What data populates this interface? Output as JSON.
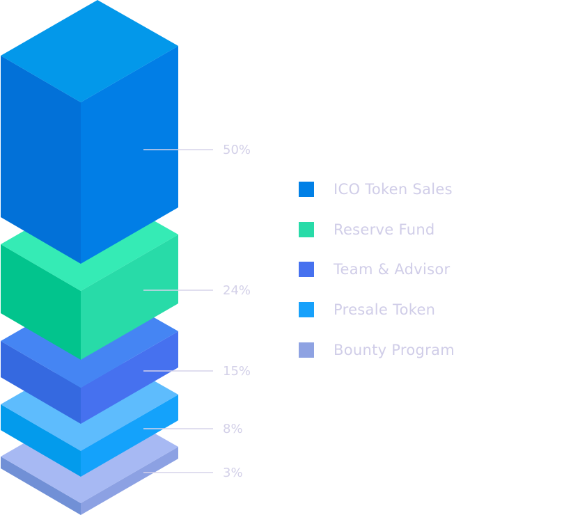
{
  "chart_data": {
    "type": "isometric-stacked-blocks",
    "categories": [
      "ICO Token Sales",
      "Reserve Fund",
      "Team & Advisor",
      "Presale Token",
      "Bounty Program"
    ],
    "values": [
      50,
      24,
      15,
      8,
      3
    ],
    "value_labels": [
      "50%",
      "24%",
      "15%",
      "8%",
      "3%"
    ],
    "unit": "%",
    "legend_placement": "right",
    "colors": [
      {
        "top": "#0398ea",
        "left": "#0271d8",
        "right": "#017ee6",
        "legend": "#0180e6"
      },
      {
        "top": "#35ebb5",
        "left": "#02c48d",
        "right": "#28dba8",
        "legend": "#28dba8"
      },
      {
        "top": "#4585f3",
        "left": "#3569e0",
        "right": "#4671ef",
        "legend": "#4671ef"
      },
      {
        "top": "#5ebcfd",
        "left": "#039bec",
        "right": "#14a2fb",
        "legend": "#17a1fb"
      },
      {
        "top": "#a7b9f3",
        "left": "#7190d6",
        "right": "#8ca1e3",
        "legend": "#8ea2e2"
      }
    ]
  }
}
